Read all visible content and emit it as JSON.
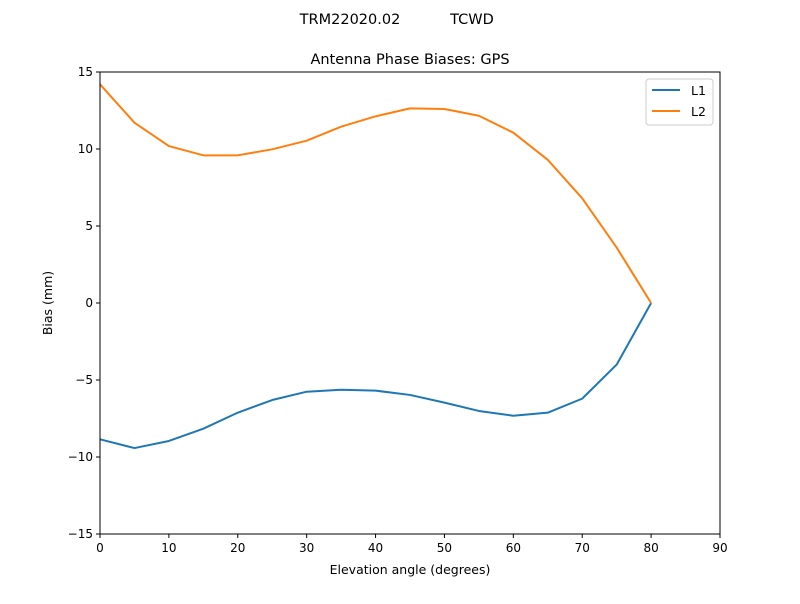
{
  "chart_data": {
    "type": "line",
    "suptitle": [
      "TRM22020.02",
      "TCWD"
    ],
    "title": "Antenna Phase Biases: GPS",
    "xlabel": "Elevation angle (degrees)",
    "ylabel": "Bias (mm)",
    "xlim": [
      0,
      90
    ],
    "ylim": [
      -15,
      15
    ],
    "xticks": [
      0,
      10,
      20,
      30,
      40,
      50,
      60,
      70,
      80,
      90
    ],
    "yticks": [
      -15,
      -10,
      -5,
      0,
      5,
      10,
      15
    ],
    "ytick_labels": [
      "−15",
      "−10",
      "−5",
      "0",
      "5",
      "10",
      "15"
    ],
    "grid": false,
    "legend_position": "top-right",
    "x": [
      0,
      5,
      10,
      15,
      20,
      25,
      30,
      35,
      40,
      45,
      50,
      55,
      60,
      65,
      70,
      75,
      80
    ],
    "series": [
      {
        "name": "L1",
        "color": "#1f77b4",
        "values": [
          -8.85,
          -9.42,
          -8.96,
          -8.16,
          -7.12,
          -6.3,
          -5.76,
          -5.63,
          -5.69,
          -5.97,
          -6.47,
          -7.01,
          -7.32,
          -7.12,
          -6.21,
          -4.0,
          0.0
        ]
      },
      {
        "name": "L2",
        "color": "#ff7f0e",
        "values": [
          14.2,
          11.71,
          10.19,
          9.59,
          9.59,
          9.98,
          10.54,
          11.45,
          12.12,
          12.64,
          12.6,
          12.16,
          11.06,
          9.3,
          6.8,
          3.6,
          0.0
        ]
      }
    ]
  }
}
